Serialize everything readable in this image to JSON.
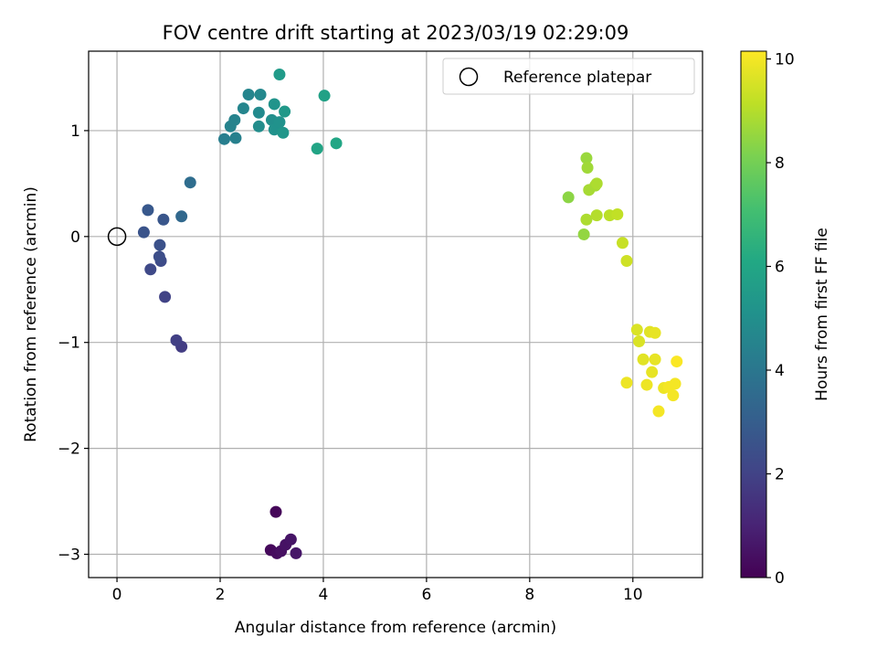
{
  "chart_data": {
    "type": "scatter",
    "title": "FOV centre drift starting at 2023/03/19 02:29:09",
    "xlabel": "Angular distance from reference (arcmin)",
    "ylabel": "Rotation from reference (arcmin)",
    "xlim": [
      -0.55,
      11.35
    ],
    "ylim": [
      -3.22,
      1.75
    ],
    "xticks": [
      0,
      2,
      4,
      6,
      8,
      10
    ],
    "yticks": [
      -3,
      -2,
      -1,
      0,
      1
    ],
    "xtick_labels": [
      "0",
      "2",
      "4",
      "6",
      "8",
      "10"
    ],
    "ytick_labels": [
      "−3",
      "−2",
      "−1",
      "0",
      "1"
    ],
    "grid": true,
    "colormap": "viridis",
    "colorbar": {
      "label": "Hours from first FF file",
      "range": [
        0,
        10.15
      ],
      "ticks": [
        0,
        2,
        4,
        6,
        8,
        10
      ],
      "tick_labels": [
        "0",
        "2",
        "4",
        "6",
        "8",
        "10"
      ]
    },
    "legend": {
      "position": "top-right",
      "label": "Reference platepar"
    },
    "reference_point": {
      "x": 0,
      "y": 0
    },
    "series": [
      {
        "points": [
          {
            "x": 3.08,
            "y": -2.6,
            "c": 0.15
          },
          {
            "x": 2.98,
            "y": -2.96,
            "c": 0.2
          },
          {
            "x": 3.1,
            "y": -2.99,
            "c": 0.3
          },
          {
            "x": 3.18,
            "y": -2.97,
            "c": 0.4
          },
          {
            "x": 3.27,
            "y": -2.91,
            "c": 0.5
          },
          {
            "x": 3.37,
            "y": -2.86,
            "c": 0.55
          },
          {
            "x": 3.47,
            "y": -2.99,
            "c": 0.6
          },
          {
            "x": 1.25,
            "y": -1.04,
            "c": 1.8
          },
          {
            "x": 1.15,
            "y": -0.98,
            "c": 1.9
          },
          {
            "x": 0.93,
            "y": -0.57,
            "c": 2.0
          },
          {
            "x": 0.65,
            "y": -0.31,
            "c": 2.2
          },
          {
            "x": 0.85,
            "y": -0.23,
            "c": 2.3
          },
          {
            "x": 0.82,
            "y": -0.19,
            "c": 2.4
          },
          {
            "x": 0.83,
            "y": -0.08,
            "c": 2.5
          },
          {
            "x": 0.52,
            "y": 0.04,
            "c": 2.6
          },
          {
            "x": 0.9,
            "y": 0.16,
            "c": 2.7
          },
          {
            "x": 0.6,
            "y": 0.25,
            "c": 2.8
          },
          {
            "x": 1.25,
            "y": 0.19,
            "c": 3.4
          },
          {
            "x": 1.42,
            "y": 0.51,
            "c": 3.6
          },
          {
            "x": 2.08,
            "y": 0.92,
            "c": 4.3
          },
          {
            "x": 2.3,
            "y": 0.93,
            "c": 4.4
          },
          {
            "x": 2.2,
            "y": 1.04,
            "c": 4.5
          },
          {
            "x": 2.28,
            "y": 1.1,
            "c": 4.5
          },
          {
            "x": 2.45,
            "y": 1.21,
            "c": 4.6
          },
          {
            "x": 2.55,
            "y": 1.34,
            "c": 4.6
          },
          {
            "x": 2.78,
            "y": 1.34,
            "c": 4.7
          },
          {
            "x": 2.75,
            "y": 1.17,
            "c": 4.8
          },
          {
            "x": 2.75,
            "y": 1.04,
            "c": 4.9
          },
          {
            "x": 3.0,
            "y": 1.1,
            "c": 5.0
          },
          {
            "x": 3.05,
            "y": 1.01,
            "c": 5.1
          },
          {
            "x": 3.15,
            "y": 1.08,
            "c": 5.1
          },
          {
            "x": 3.05,
            "y": 1.25,
            "c": 5.2
          },
          {
            "x": 3.22,
            "y": 0.98,
            "c": 5.3
          },
          {
            "x": 3.25,
            "y": 1.18,
            "c": 5.4
          },
          {
            "x": 3.15,
            "y": 1.53,
            "c": 5.5
          },
          {
            "x": 4.02,
            "y": 1.33,
            "c": 5.8
          },
          {
            "x": 3.88,
            "y": 0.83,
            "c": 5.9
          },
          {
            "x": 4.25,
            "y": 0.88,
            "c": 6.0
          },
          {
            "x": 8.75,
            "y": 0.37,
            "c": 8.4
          },
          {
            "x": 9.05,
            "y": 0.02,
            "c": 8.5
          },
          {
            "x": 9.1,
            "y": 0.74,
            "c": 8.6
          },
          {
            "x": 9.12,
            "y": 0.65,
            "c": 8.7
          },
          {
            "x": 9.15,
            "y": 0.44,
            "c": 8.8
          },
          {
            "x": 9.27,
            "y": 0.48,
            "c": 8.8
          },
          {
            "x": 9.3,
            "y": 0.5,
            "c": 8.9
          },
          {
            "x": 9.1,
            "y": 0.16,
            "c": 8.9
          },
          {
            "x": 9.3,
            "y": 0.2,
            "c": 9.0
          },
          {
            "x": 9.55,
            "y": 0.2,
            "c": 9.1
          },
          {
            "x": 9.7,
            "y": 0.21,
            "c": 9.2
          },
          {
            "x": 9.8,
            "y": -0.06,
            "c": 9.3
          },
          {
            "x": 9.88,
            "y": -0.23,
            "c": 9.4
          },
          {
            "x": 10.08,
            "y": -0.88,
            "c": 9.6
          },
          {
            "x": 10.12,
            "y": -0.99,
            "c": 9.6
          },
          {
            "x": 10.33,
            "y": -0.9,
            "c": 9.7
          },
          {
            "x": 10.43,
            "y": -0.91,
            "c": 9.8
          },
          {
            "x": 10.2,
            "y": -1.16,
            "c": 9.7
          },
          {
            "x": 10.43,
            "y": -1.16,
            "c": 9.8
          },
          {
            "x": 10.37,
            "y": -1.28,
            "c": 9.8
          },
          {
            "x": 10.27,
            "y": -1.4,
            "c": 9.9
          },
          {
            "x": 9.88,
            "y": -1.38,
            "c": 9.9
          },
          {
            "x": 10.6,
            "y": -1.43,
            "c": 9.9
          },
          {
            "x": 10.7,
            "y": -1.42,
            "c": 10.0
          },
          {
            "x": 10.78,
            "y": -1.5,
            "c": 10.0
          },
          {
            "x": 10.82,
            "y": -1.39,
            "c": 10.0
          },
          {
            "x": 10.5,
            "y": -1.65,
            "c": 10.0
          },
          {
            "x": 10.85,
            "y": -1.18,
            "c": 10.1
          }
        ]
      }
    ]
  }
}
